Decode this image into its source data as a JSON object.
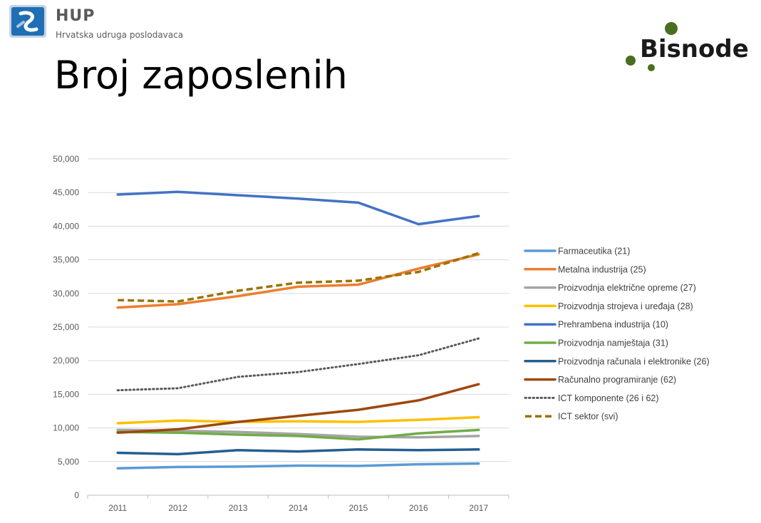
{
  "header": {
    "org_short": "HUP",
    "org_full": "Hrvatska udruga poslodavaca",
    "partner_logo": "Bisnode",
    "title": "Broj zaposlenih"
  },
  "colors": {
    "accent_green": "#4a6d1f",
    "hup_blue": "#1f6fb5"
  },
  "chart_data": {
    "type": "line",
    "title": "",
    "xlabel": "",
    "ylabel": "",
    "x": [
      "2011",
      "2012",
      "2013",
      "2014",
      "2015",
      "2016",
      "2017"
    ],
    "ylim": [
      0,
      50000
    ],
    "yticks": [
      {
        "value": 0,
        "label": "0"
      },
      {
        "value": 5000,
        "label": "5,000"
      },
      {
        "value": 10000,
        "label": "10,000"
      },
      {
        "value": 15000,
        "label": "15,000"
      },
      {
        "value": 20000,
        "label": "20,000"
      },
      {
        "value": 25000,
        "label": "25,000"
      },
      {
        "value": 30000,
        "label": "30,000"
      },
      {
        "value": 35000,
        "label": "35,000"
      },
      {
        "value": 40000,
        "label": "40,000"
      },
      {
        "value": 45000,
        "label": "45,000"
      },
      {
        "value": 50000,
        "label": "50,000"
      }
    ],
    "grid": "horizontal",
    "legend_position": "right",
    "series": [
      {
        "name": "Farmaceutika (21)",
        "color": "#5b9bd5",
        "style": "solid",
        "values": [
          4000,
          4200,
          4250,
          4400,
          4350,
          4600,
          4700
        ]
      },
      {
        "name": "Metalna industrija (25)",
        "color": "#ed7d31",
        "style": "solid",
        "values": [
          27900,
          28400,
          29600,
          31000,
          31300,
          33700,
          35800
        ]
      },
      {
        "name": "Proizvodnja električne opreme (27)",
        "color": "#a5a5a5",
        "style": "solid",
        "values": [
          9700,
          9600,
          9400,
          9100,
          8700,
          8600,
          8800
        ]
      },
      {
        "name": "Proizvodnja strojeva i uređaja (28)",
        "color": "#ffc000",
        "style": "solid",
        "values": [
          10700,
          11100,
          10900,
          11000,
          10900,
          11200,
          11600
        ]
      },
      {
        "name": "Prehrambena industrija (10)",
        "color": "#4472c4",
        "style": "solid",
        "values": [
          44700,
          45100,
          44600,
          44100,
          43500,
          40300,
          41500
        ]
      },
      {
        "name": "Proizvodnja namještaja (31)",
        "color": "#70ad47",
        "style": "solid",
        "values": [
          9400,
          9300,
          9000,
          8800,
          8300,
          9200,
          9700
        ]
      },
      {
        "name": "Proizvodnja računala i elektronike (26)",
        "color": "#255e91",
        "style": "solid",
        "values": [
          6300,
          6100,
          6700,
          6500,
          6800,
          6700,
          6800
        ]
      },
      {
        "name": "Računalno programiranje (62)",
        "color": "#9e480e",
        "style": "solid",
        "values": [
          9300,
          9800,
          10900,
          11800,
          12700,
          14100,
          16500
        ]
      },
      {
        "name": "ICT komponente (26 i 62)",
        "color": "#595959",
        "style": "dotted",
        "values": [
          15600,
          15900,
          17600,
          18300,
          19500,
          20800,
          23300
        ]
      },
      {
        "name": "ICT sektor (svi)",
        "color": "#997300",
        "style": "dashed",
        "values": [
          29000,
          28800,
          30400,
          31600,
          31900,
          33200,
          36000
        ]
      }
    ]
  }
}
